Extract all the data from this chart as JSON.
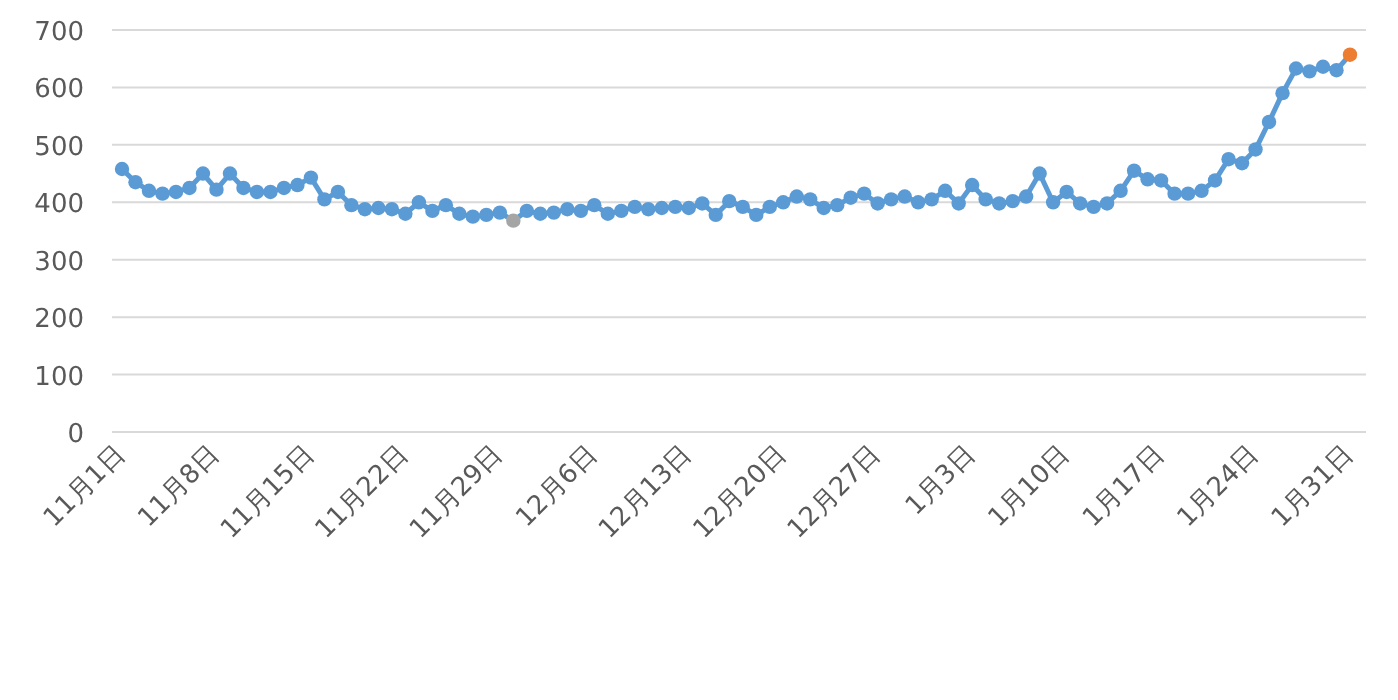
{
  "chart_data": {
    "type": "line",
    "categories": [
      "11月1日",
      null,
      null,
      null,
      null,
      null,
      null,
      "11月8日",
      null,
      null,
      null,
      null,
      null,
      null,
      "11月15日",
      null,
      null,
      null,
      null,
      null,
      null,
      "11月22日",
      null,
      null,
      null,
      null,
      null,
      null,
      "11月29日",
      null,
      null,
      null,
      null,
      null,
      null,
      "12月6日",
      null,
      null,
      null,
      null,
      null,
      null,
      "12月13日",
      null,
      null,
      null,
      null,
      null,
      null,
      "12月20日",
      null,
      null,
      null,
      null,
      null,
      null,
      "12月27日",
      null,
      null,
      null,
      null,
      null,
      null,
      "1月3日",
      null,
      null,
      null,
      null,
      null,
      null,
      "1月10日",
      null,
      null,
      null,
      null,
      null,
      null,
      "1月17日",
      null,
      null,
      null,
      null,
      null,
      null,
      "1月24日",
      null,
      null,
      null,
      null,
      null,
      null,
      "1月31日"
    ],
    "series": [
      {
        "color": "#5b9bd5",
        "values": [
          458,
          435,
          420,
          415,
          418,
          425,
          450,
          422,
          450,
          425,
          418,
          418,
          425,
          430,
          443,
          405,
          418,
          395,
          388,
          390,
          388,
          380,
          400,
          385,
          395,
          380,
          375,
          378,
          382,
          368,
          385,
          380,
          382,
          388,
          385,
          395,
          380,
          385,
          392,
          388,
          390,
          392,
          390,
          398,
          378,
          402,
          392,
          378,
          392,
          400,
          410,
          405,
          390,
          395,
          408,
          415,
          398,
          405,
          410,
          400,
          405,
          420,
          398,
          430,
          405,
          398,
          402,
          410,
          450,
          400,
          418,
          398,
          392,
          398,
          420,
          455,
          440,
          438,
          415,
          415,
          420,
          438,
          475,
          468,
          492,
          540,
          590,
          633,
          628,
          636,
          630,
          657
        ],
        "colors": [
          "#5b9bd5",
          "#5b9bd5",
          "#5b9bd5",
          "#5b9bd5",
          "#5b9bd5",
          "#5b9bd5",
          "#5b9bd5",
          "#5b9bd5",
          "#5b9bd5",
          "#5b9bd5",
          "#5b9bd5",
          "#5b9bd5",
          "#5b9bd5",
          "#5b9bd5",
          "#5b9bd5",
          "#5b9bd5",
          "#5b9bd5",
          "#5b9bd5",
          "#5b9bd5",
          "#5b9bd5",
          "#5b9bd5",
          "#5b9bd5",
          "#5b9bd5",
          "#5b9bd5",
          "#5b9bd5",
          "#5b9bd5",
          "#5b9bd5",
          "#5b9bd5",
          "#5b9bd5",
          "#a5a5a5",
          "#5b9bd5",
          "#5b9bd5",
          "#5b9bd5",
          "#5b9bd5",
          "#5b9bd5",
          "#5b9bd5",
          "#5b9bd5",
          "#5b9bd5",
          "#5b9bd5",
          "#5b9bd5",
          "#5b9bd5",
          "#5b9bd5",
          "#5b9bd5",
          "#5b9bd5",
          "#5b9bd5",
          "#5b9bd5",
          "#5b9bd5",
          "#5b9bd5",
          "#5b9bd5",
          "#5b9bd5",
          "#5b9bd5",
          "#5b9bd5",
          "#5b9bd5",
          "#5b9bd5",
          "#5b9bd5",
          "#5b9bd5",
          "#5b9bd5",
          "#5b9bd5",
          "#5b9bd5",
          "#5b9bd5",
          "#5b9bd5",
          "#5b9bd5",
          "#5b9bd5",
          "#5b9bd5",
          "#5b9bd5",
          "#5b9bd5",
          "#5b9bd5",
          "#5b9bd5",
          "#5b9bd5",
          "#5b9bd5",
          "#5b9bd5",
          "#5b9bd5",
          "#5b9bd5",
          "#5b9bd5",
          "#5b9bd5",
          "#5b9bd5",
          "#5b9bd5",
          "#5b9bd5",
          "#5b9bd5",
          "#5b9bd5",
          "#5b9bd5",
          "#5b9bd5",
          "#5b9bd5",
          "#5b9bd5",
          "#5b9bd5",
          "#5b9bd5",
          "#5b9bd5",
          "#5b9bd5",
          "#5b9bd5",
          "#5b9bd5",
          "#5b9bd5",
          "#ed7d31"
        ]
      }
    ],
    "ylim": [
      0,
      700
    ],
    "yticks": [
      0,
      100,
      200,
      300,
      400,
      500,
      600,
      700
    ],
    "grid": "y",
    "marker": "circle",
    "line_style": "solid"
  }
}
